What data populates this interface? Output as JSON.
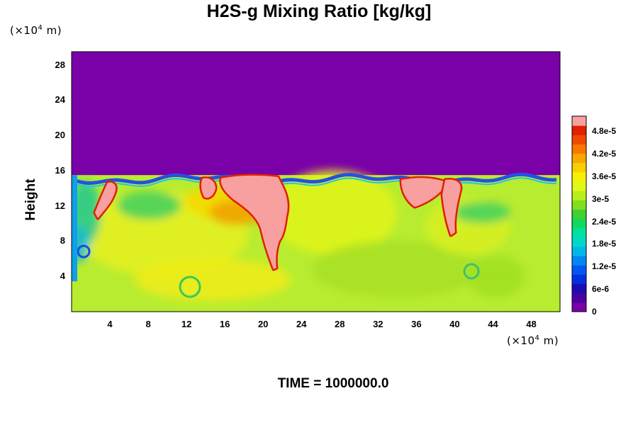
{
  "chart_data": {
    "type": "heatmap",
    "title": "H2S-g Mixing Ratio [kg/kg]",
    "ylabel": "Height",
    "y_unit_prefix": "(×10",
    "y_unit_exp": "4",
    "y_unit_suffix": " m)",
    "x_unit_prefix": "(×10",
    "x_unit_exp": "4",
    "x_unit_suffix": " m)",
    "xlim": [
      0,
      51
    ],
    "ylim": [
      0,
      29.5
    ],
    "x_ticks": [
      "4",
      "8",
      "12",
      "16",
      "20",
      "24",
      "28",
      "32",
      "36",
      "40",
      "44",
      "48"
    ],
    "y_ticks": [
      "4",
      "8",
      "12",
      "16",
      "20",
      "24",
      "28"
    ],
    "colorbar": {
      "min": 0,
      "max": 5.2e-05,
      "tick_labels": [
        "0",
        "6e-6",
        "1.2e-5",
        "1.8e-5",
        "2.4e-5",
        "3e-5",
        "3.6e-5",
        "4.2e-5",
        "4.8e-5"
      ],
      "colors": [
        "#7a00a8",
        "#4a00a0",
        "#1c0cb4",
        "#0030e0",
        "#0058f0",
        "#0088f0",
        "#00b8e8",
        "#00d8c8",
        "#00e0a0",
        "#10d860",
        "#40d030",
        "#80e020",
        "#b8f018",
        "#e0f818",
        "#f8f000",
        "#f8d000",
        "#f8a800",
        "#f87800",
        "#f04800",
        "#e02000",
        "#f8a0a0"
      ]
    },
    "layer_top_height": 15.5,
    "time_label": "TIME = 1000000.0"
  }
}
